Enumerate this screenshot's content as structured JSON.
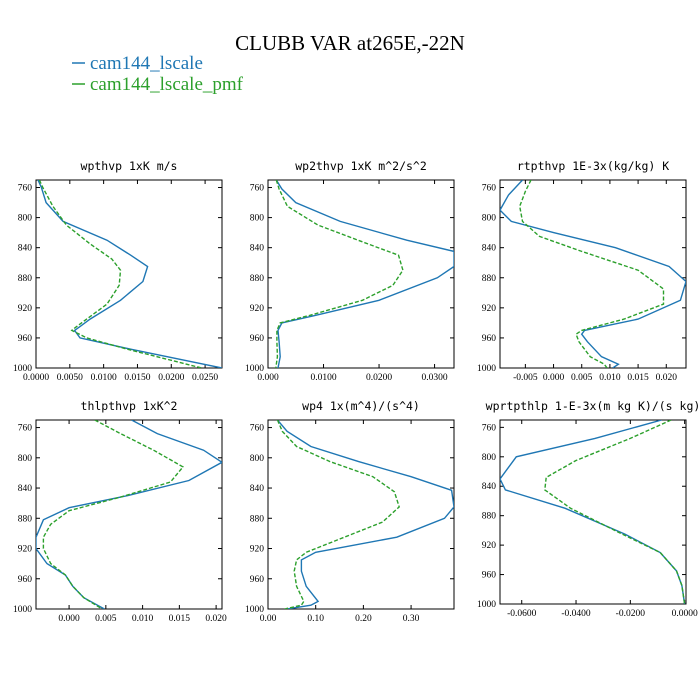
{
  "figure": {
    "title": "CLUBB VAR at265E,-22N",
    "legend": [
      {
        "label": "cam144_lscale",
        "color": "#1f77b4",
        "dash": "solid"
      },
      {
        "label": "cam144_lscale_pmf",
        "color": "#2ca02c",
        "dash": "dashed"
      }
    ]
  },
  "chart_data": [
    {
      "type": "line",
      "title": "wpthvp   1xK m/s",
      "xticks": [
        "0.0000",
        "0.0050",
        "0.0100",
        "0.0150",
        "0.0200",
        "0.0250"
      ],
      "xtick_values": [
        0,
        0.005,
        0.01,
        0.015,
        0.02,
        0.025
      ],
      "xlim": [
        0,
        0.0275
      ],
      "ylim": [
        1000,
        750
      ],
      "yticks": [
        760,
        800,
        840,
        880,
        920,
        960,
        1000
      ],
      "series": [
        {
          "name": "cam144_lscale",
          "color": "#1f77b4",
          "dash": "solid",
          "x": [
            0.0003,
            0.0008,
            0.0015,
            0.004,
            0.0105,
            0.014,
            0.0165,
            0.0158,
            0.0125,
            0.008,
            0.0065,
            0.0057,
            0.0065,
            0.014,
            0.0275
          ],
          "y": [
            750,
            760,
            780,
            805,
            830,
            850,
            865,
            885,
            910,
            935,
            945,
            950,
            960,
            975,
            1000
          ]
        },
        {
          "name": "cam144_lscale_pmf",
          "color": "#2ca02c",
          "dash": "dashed",
          "x": [
            0.0005,
            0.001,
            0.0025,
            0.0045,
            0.008,
            0.0112,
            0.0125,
            0.0123,
            0.0105,
            0.0075,
            0.006,
            0.0053,
            0.0075,
            0.0135,
            0.0245
          ],
          "y": [
            750,
            760,
            785,
            810,
            835,
            855,
            870,
            890,
            915,
            935,
            945,
            950,
            960,
            975,
            1000
          ]
        }
      ]
    },
    {
      "type": "line",
      "title": "wp2thvp   1xK m^2/s^2",
      "xticks": [
        "0.000",
        "0.0100",
        "0.0200",
        "0.0300"
      ],
      "xtick_values": [
        0,
        0.01,
        0.02,
        0.03
      ],
      "xlim": [
        0,
        0.0335
      ],
      "ylim": [
        1000,
        750
      ],
      "yticks": [
        760,
        800,
        840,
        880,
        920,
        960,
        1000
      ],
      "series": [
        {
          "name": "cam144_lscale",
          "color": "#1f77b4",
          "dash": "solid",
          "x": [
            0.0015,
            0.0025,
            0.005,
            0.013,
            0.025,
            0.0335,
            0.0335,
            0.0305,
            0.02,
            0.0085,
            0.0025,
            0.0018,
            0.002,
            0.0022,
            0.0018
          ],
          "y": [
            750,
            762,
            780,
            805,
            830,
            845,
            865,
            880,
            910,
            930,
            940,
            950,
            965,
            985,
            1000
          ]
        },
        {
          "name": "cam144_lscale_pmf",
          "color": "#2ca02c",
          "dash": "dashed",
          "x": [
            0.0015,
            0.002,
            0.0035,
            0.009,
            0.018,
            0.0235,
            0.0243,
            0.0225,
            0.017,
            0.0075,
            0.0022,
            0.0016,
            0.0016,
            0.0017,
            0.0014
          ],
          "y": [
            750,
            762,
            785,
            810,
            835,
            850,
            870,
            890,
            910,
            930,
            940,
            950,
            965,
            985,
            1000
          ]
        }
      ]
    },
    {
      "type": "line",
      "title": "rtpthvp   1E-3x(kg/kg) K",
      "xticks": [
        "-0.005",
        "0.000",
        "0.005",
        "0.010",
        "0.015",
        "0.020"
      ],
      "xtick_values": [
        -0.005,
        0,
        0.005,
        0.01,
        0.015,
        0.02
      ],
      "xlim": [
        -0.0095,
        0.0235
      ],
      "ylim": [
        1000,
        750
      ],
      "yticks": [
        760,
        800,
        840,
        880,
        920,
        960,
        1000
      ],
      "series": [
        {
          "name": "cam144_lscale",
          "color": "#1f77b4",
          "dash": "solid",
          "x": [
            -0.0055,
            -0.008,
            -0.0095,
            -0.0075,
            0.0,
            0.011,
            0.0205,
            0.0235,
            0.0225,
            0.015,
            0.0055,
            0.005,
            0.006,
            0.0085,
            0.0115,
            0.0105
          ],
          "y": [
            750,
            770,
            790,
            805,
            820,
            840,
            865,
            885,
            910,
            935,
            950,
            955,
            965,
            985,
            995,
            1000
          ]
        },
        {
          "name": "cam144_lscale_pmf",
          "color": "#2ca02c",
          "dash": "dashed",
          "x": [
            -0.004,
            -0.005,
            -0.006,
            -0.0055,
            -0.0025,
            0.005,
            0.015,
            0.0195,
            0.0195,
            0.0125,
            0.005,
            0.004,
            0.0045,
            0.0065,
            0.009,
            0.0095
          ],
          "y": [
            750,
            765,
            785,
            805,
            825,
            845,
            870,
            895,
            915,
            935,
            950,
            955,
            965,
            985,
            995,
            1000
          ]
        }
      ]
    },
    {
      "type": "line",
      "title": "thlpthvp   1xK^2",
      "xticks": [
        "0.000",
        "0.005",
        "0.010",
        "0.015",
        "0.020"
      ],
      "xtick_values": [
        0,
        0.005,
        0.01,
        0.015,
        0.02
      ],
      "xlim": [
        -0.0045,
        0.0208
      ],
      "ylim": [
        1000,
        750
      ],
      "yticks": [
        760,
        800,
        840,
        880,
        920,
        960,
        1000
      ],
      "series": [
        {
          "name": "cam144_lscale",
          "color": "#1f77b4",
          "dash": "solid",
          "x": [
            0.0085,
            0.012,
            0.0183,
            0.0208,
            0.0163,
            0.008,
            0.0,
            -0.0035,
            -0.0045,
            -0.0045,
            -0.003,
            -0.0005,
            0.0005,
            0.002,
            0.0048
          ],
          "y": [
            750,
            768,
            790,
            806,
            830,
            850,
            866,
            882,
            905,
            920,
            940,
            955,
            970,
            985,
            1000
          ]
        },
        {
          "name": "cam144_lscale_pmf",
          "color": "#2ca02c",
          "dash": "dashed",
          "x": [
            0.0035,
            0.007,
            0.0115,
            0.0155,
            0.0138,
            0.007,
            0.0,
            -0.0025,
            -0.0035,
            -0.0035,
            -0.0025,
            -0.0005,
            0.0005,
            0.002,
            0.0045
          ],
          "y": [
            750,
            768,
            790,
            812,
            832,
            852,
            870,
            888,
            905,
            920,
            940,
            955,
            970,
            985,
            1000
          ]
        }
      ]
    },
    {
      "type": "line",
      "title": "wp4   1x(m^4)/(s^4)",
      "xticks": [
        "0.00",
        "0.10",
        "0.20",
        "0.30"
      ],
      "xtick_values": [
        0,
        0.1,
        0.2,
        0.3
      ],
      "xlim": [
        0,
        0.39
      ],
      "ylim": [
        1000,
        750
      ],
      "yticks": [
        760,
        800,
        840,
        880,
        920,
        960,
        1000
      ],
      "series": [
        {
          "name": "cam144_lscale",
          "color": "#1f77b4",
          "dash": "solid",
          "x": [
            0.02,
            0.04,
            0.09,
            0.19,
            0.3,
            0.385,
            0.39,
            0.37,
            0.27,
            0.1,
            0.07,
            0.07,
            0.08,
            0.105,
            0.09,
            0.04
          ],
          "y": [
            750,
            765,
            785,
            805,
            825,
            843,
            865,
            880,
            905,
            925,
            935,
            950,
            970,
            990,
            995,
            1000
          ]
        },
        {
          "name": "cam144_lscale_pmf",
          "color": "#2ca02c",
          "dash": "dashed",
          "x": [
            0.02,
            0.03,
            0.06,
            0.13,
            0.22,
            0.265,
            0.275,
            0.24,
            0.16,
            0.08,
            0.06,
            0.055,
            0.06,
            0.075,
            0.07,
            0.035
          ],
          "y": [
            750,
            765,
            785,
            805,
            825,
            845,
            865,
            885,
            905,
            925,
            935,
            950,
            970,
            990,
            995,
            1000
          ]
        }
      ]
    },
    {
      "type": "line",
      "title": "wprtpthlp   1-E-3x(m kg K)/(s kg)",
      "xticks": [
        "-0.0600",
        "-0.0400",
        "-0.0200",
        "0.0000"
      ],
      "xtick_values": [
        -0.06,
        -0.04,
        -0.02,
        0
      ],
      "xlim": [
        -0.068,
        0.0005
      ],
      "ylim": [
        1000,
        750
      ],
      "yticks": [
        760,
        800,
        840,
        880,
        920,
        960,
        1000
      ],
      "series": [
        {
          "name": "cam144_lscale",
          "color": "#1f77b4",
          "dash": "solid",
          "x": [
            -0.0085,
            -0.033,
            -0.062,
            -0.068,
            -0.066,
            -0.044,
            -0.022,
            -0.009,
            -0.003,
            -0.001,
            0.0
          ],
          "y": [
            750,
            775,
            800,
            830,
            845,
            870,
            905,
            930,
            955,
            975,
            1000
          ]
        },
        {
          "name": "cam144_lscale_pmf",
          "color": "#2ca02c",
          "dash": "dashed",
          "x": [
            -0.005,
            -0.02,
            -0.04,
            -0.051,
            -0.0515,
            -0.042,
            -0.023,
            -0.009,
            -0.003,
            -0.001,
            0.0
          ],
          "y": [
            750,
            775,
            805,
            828,
            845,
            870,
            905,
            930,
            955,
            975,
            1000
          ]
        }
      ]
    }
  ]
}
